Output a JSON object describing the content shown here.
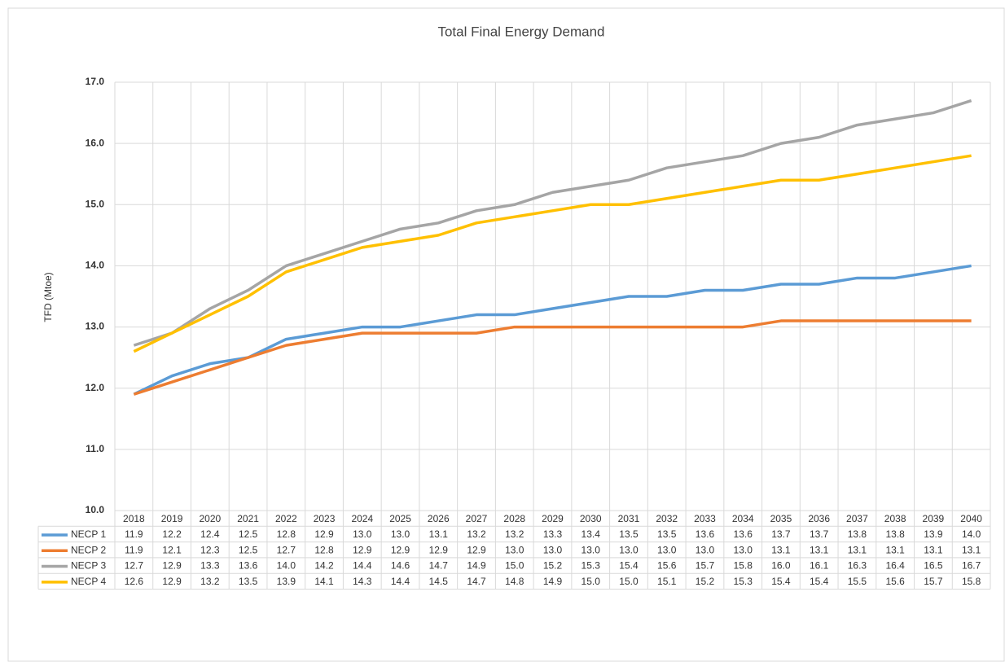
{
  "chart_data": {
    "type": "line",
    "title": "Total Final Energy Demand",
    "y_label": "TFD (Mtoe)",
    "categories": [
      "2018",
      "2019",
      "2020",
      "2021",
      "2022",
      "2023",
      "2024",
      "2025",
      "2026",
      "2027",
      "2028",
      "2029",
      "2030",
      "2031",
      "2032",
      "2033",
      "2034",
      "2035",
      "2036",
      "2037",
      "2038",
      "2039",
      "2040"
    ],
    "ylim": [
      10,
      17
    ],
    "yticks": [
      {
        "value": 10,
        "label": "10.0"
      },
      {
        "value": 11,
        "label": "11.0"
      },
      {
        "value": 12,
        "label": "12.0"
      },
      {
        "value": 13,
        "label": "13.0"
      },
      {
        "value": 14,
        "label": "14.0"
      },
      {
        "value": 15,
        "label": "15.0"
      },
      {
        "value": 16,
        "label": "16.0"
      },
      {
        "value": 17,
        "label": "17.0"
      }
    ],
    "grid": true,
    "series": [
      {
        "name": "NECP 1",
        "color": "#5b9bd5",
        "values": [
          11.9,
          12.2,
          12.4,
          12.5,
          12.8,
          12.9,
          13.0,
          13.0,
          13.1,
          13.2,
          13.2,
          13.3,
          13.4,
          13.5,
          13.5,
          13.6,
          13.6,
          13.7,
          13.7,
          13.8,
          13.8,
          13.9,
          14.0
        ],
        "value_labels": [
          "11.9",
          "12.2",
          "12.4",
          "12.5",
          "12.8",
          "12.9",
          "13.0",
          "13.0",
          "13.1",
          "13.2",
          "13.2",
          "13.3",
          "13.4",
          "13.5",
          "13.5",
          "13.6",
          "13.6",
          "13.7",
          "13.7",
          "13.8",
          "13.8",
          "13.9",
          "14.0"
        ]
      },
      {
        "name": "NECP 2",
        "color": "#ed7d31",
        "values": [
          11.9,
          12.1,
          12.3,
          12.5,
          12.7,
          12.8,
          12.9,
          12.9,
          12.9,
          12.9,
          13.0,
          13.0,
          13.0,
          13.0,
          13.0,
          13.0,
          13.0,
          13.1,
          13.1,
          13.1,
          13.1,
          13.1,
          13.1
        ],
        "value_labels": [
          "11.9",
          "12.1",
          "12.3",
          "12.5",
          "12.7",
          "12.8",
          "12.9",
          "12.9",
          "12.9",
          "12.9",
          "13.0",
          "13.0",
          "13.0",
          "13.0",
          "13.0",
          "13.0",
          "13.0",
          "13.1",
          "13.1",
          "13.1",
          "13.1",
          "13.1",
          "13.1"
        ]
      },
      {
        "name": "NECP 3",
        "color": "#a5a5a5",
        "values": [
          12.7,
          12.9,
          13.3,
          13.6,
          14.0,
          14.2,
          14.4,
          14.6,
          14.7,
          14.9,
          15.0,
          15.2,
          15.3,
          15.4,
          15.6,
          15.7,
          15.8,
          16.0,
          16.1,
          16.3,
          16.4,
          16.5,
          16.7
        ],
        "value_labels": [
          "12.7",
          "12.9",
          "13.3",
          "13.6",
          "14.0",
          "14.2",
          "14.4",
          "14.6",
          "14.7",
          "14.9",
          "15.0",
          "15.2",
          "15.3",
          "15.4",
          "15.6",
          "15.7",
          "15.8",
          "16.0",
          "16.1",
          "16.3",
          "16.4",
          "16.5",
          "16.7"
        ]
      },
      {
        "name": "NECP 4",
        "color": "#ffc000",
        "values": [
          12.6,
          12.9,
          13.2,
          13.5,
          13.9,
          14.1,
          14.3,
          14.4,
          14.5,
          14.7,
          14.8,
          14.9,
          15.0,
          15.0,
          15.1,
          15.2,
          15.3,
          15.4,
          15.4,
          15.5,
          15.6,
          15.7,
          15.8
        ],
        "value_labels": [
          "12.6",
          "12.9",
          "13.2",
          "13.5",
          "13.9",
          "14.1",
          "14.3",
          "14.4",
          "14.5",
          "14.7",
          "14.8",
          "14.9",
          "15.0",
          "15.0",
          "15.1",
          "15.2",
          "15.3",
          "15.4",
          "15.4",
          "15.5",
          "15.6",
          "15.7",
          "15.8"
        ]
      }
    ]
  }
}
